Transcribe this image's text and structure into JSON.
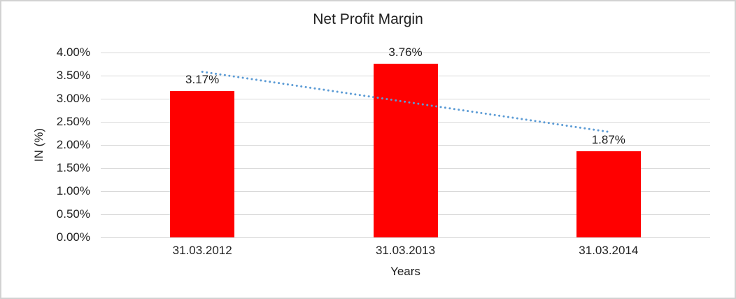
{
  "chart_data": {
    "type": "bar",
    "title": "Net Profit Margin",
    "categories": [
      "31.03.2012",
      "31.03.2013",
      "31.03.2014"
    ],
    "series": [
      {
        "values": [
          3.17,
          3.76,
          1.87
        ],
        "data_labels": [
          "3.17%",
          "3.76%",
          "1.87%"
        ],
        "color": "#ff0000"
      }
    ],
    "xlabel": "Years",
    "ylabel": "IN (%)",
    "ylim": [
      0,
      4
    ],
    "ytick_step": 0.5,
    "ytick_labels": [
      "0.00%",
      "0.50%",
      "1.00%",
      "1.50%",
      "2.00%",
      "2.50%",
      "3.00%",
      "3.50%",
      "4.00%"
    ],
    "grid": true,
    "legend": "none",
    "trendline": {
      "type": "linear",
      "style": "dotted",
      "color": "#5b9bd5"
    },
    "colors": {
      "bar": "#ff0000",
      "trendline": "#5b9bd5",
      "gridline": "#d9d9d9",
      "text": "#1f1f1f",
      "chart_border": "#d2d2d2",
      "background": "#ffffff"
    }
  }
}
